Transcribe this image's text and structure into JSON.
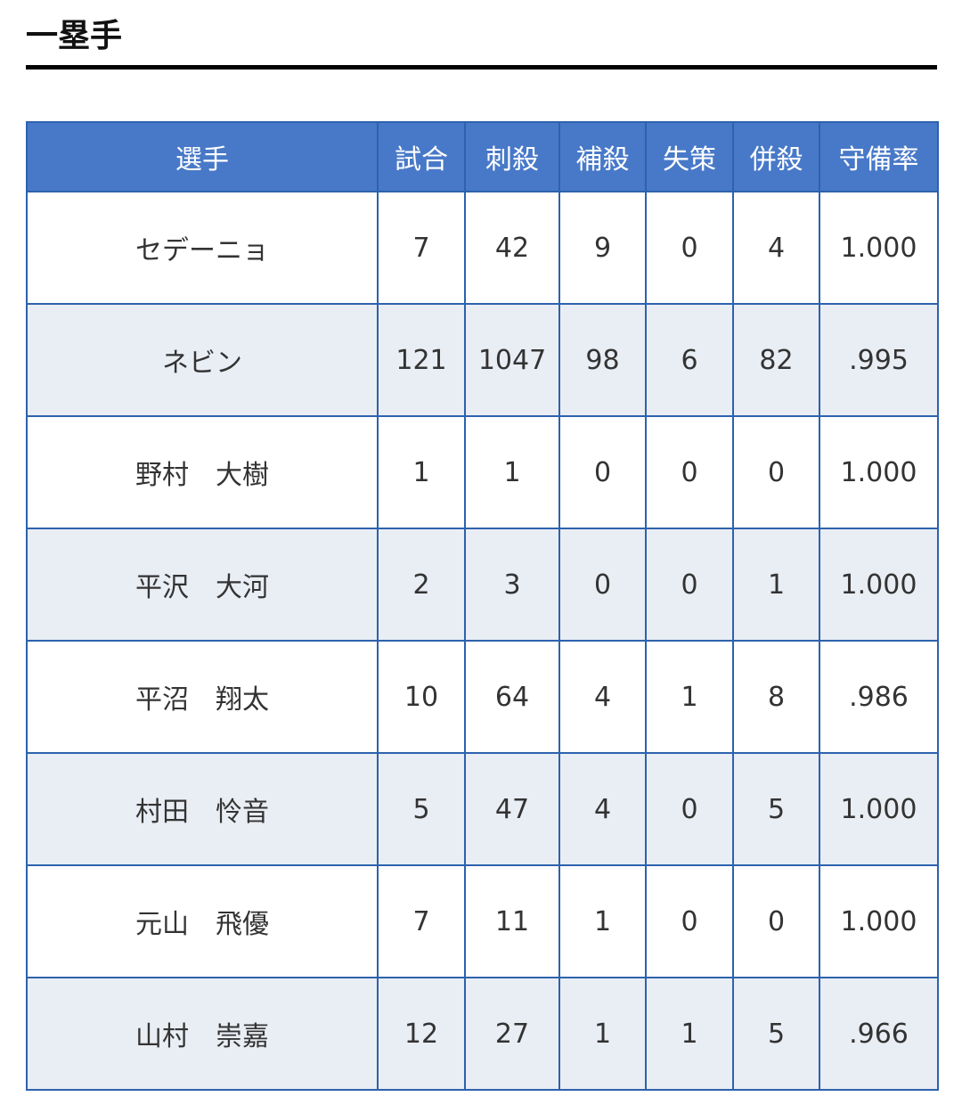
{
  "title": "一塁手",
  "table": {
    "headers": [
      "選手",
      "試合",
      "刺殺",
      "補殺",
      "失策",
      "併殺",
      "守備率"
    ],
    "rows": [
      [
        "セデーニョ",
        "7",
        "42",
        "9",
        "0",
        "4",
        "1.000"
      ],
      [
        "ネビン",
        "121",
        "1047",
        "98",
        "6",
        "82",
        ".995"
      ],
      [
        "野村　大樹",
        "1",
        "1",
        "0",
        "0",
        "0",
        "1.000"
      ],
      [
        "平沢　大河",
        "2",
        "3",
        "0",
        "0",
        "1",
        "1.000"
      ],
      [
        "平沼　翔太",
        "10",
        "64",
        "4",
        "1",
        "8",
        ".986"
      ],
      [
        "村田　怜音",
        "5",
        "47",
        "4",
        "0",
        "5",
        "1.000"
      ],
      [
        "元山　飛優",
        "7",
        "11",
        "1",
        "0",
        "0",
        "1.000"
      ],
      [
        "山村　崇嘉",
        "12",
        "27",
        "1",
        "1",
        "5",
        ".966"
      ]
    ]
  },
  "colors": {
    "header_bg": "#4879c8",
    "border": "#2d62ad",
    "stripe": "#e9edf4"
  }
}
